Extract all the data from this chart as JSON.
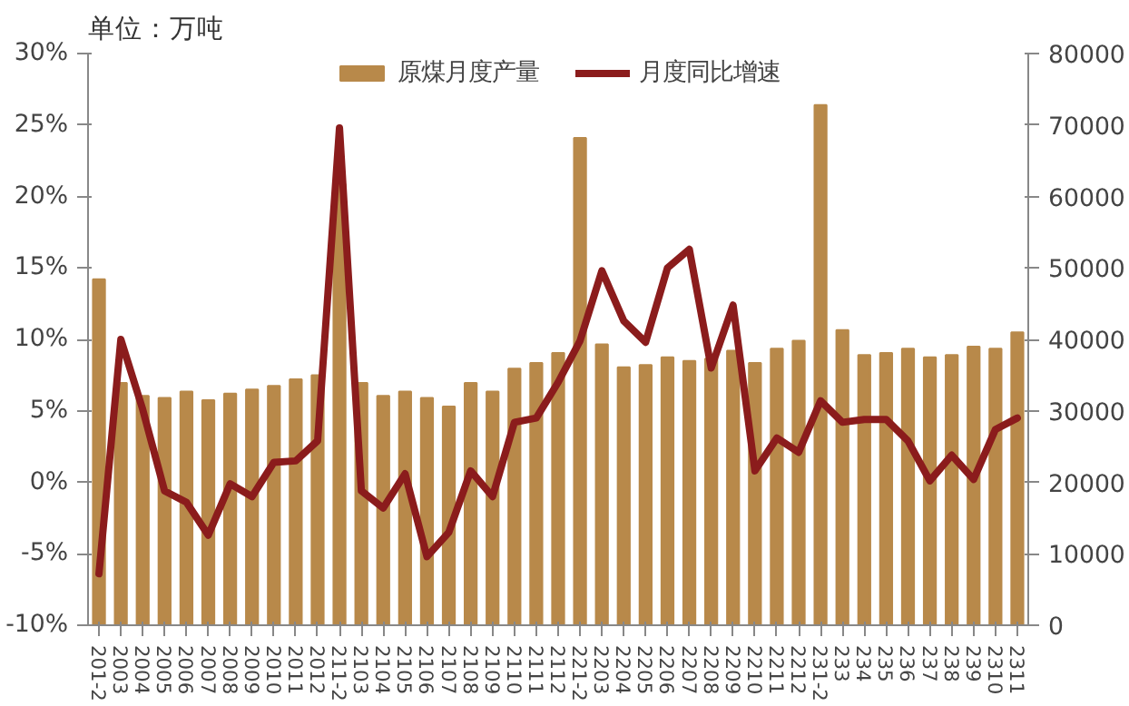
{
  "chart_data": {
    "type": "bar",
    "title": "单位：万吨",
    "categories": [
      "201-2",
      "2003",
      "2004",
      "2005",
      "2006",
      "2007",
      "2008",
      "2009",
      "2010",
      "2011",
      "2012",
      "211-2",
      "2103",
      "2104",
      "2105",
      "2106",
      "2107",
      "2108",
      "2109",
      "2110",
      "2111",
      "2112",
      "221-2",
      "2203",
      "2204",
      "2205",
      "2206",
      "2207",
      "2208",
      "2209",
      "2210",
      "2211",
      "2212",
      "231-2",
      "233",
      "234",
      "235",
      "236",
      "237",
      "238",
      "239",
      "2310",
      "2311"
    ],
    "series": [
      {
        "name": "原煤月度产量",
        "axis": "y2",
        "color": "#b8894a",
        "values": [
          48400,
          33900,
          32100,
          31800,
          32700,
          31500,
          32400,
          33000,
          33500,
          34400,
          35000,
          61700,
          33900,
          32100,
          32700,
          31800,
          30600,
          33900,
          32700,
          35900,
          36700,
          38100,
          68200,
          39300,
          36100,
          36400,
          37500,
          37000,
          37300,
          38400,
          36700,
          38700,
          39800,
          72800,
          41300,
          37800,
          38100,
          38700,
          37500,
          37800,
          39000,
          38700,
          41000
        ]
      },
      {
        "name": "月度同比增速",
        "type": "line",
        "axis": "y",
        "color": "#8b1c1c",
        "values": [
          -6.4,
          10.0,
          5.1,
          -0.6,
          -1.4,
          -3.7,
          -0.1,
          -1.0,
          1.4,
          1.5,
          2.9,
          24.8,
          -0.6,
          -1.8,
          0.6,
          -5.2,
          -3.5,
          0.8,
          -1.0,
          4.2,
          4.5,
          7.0,
          9.9,
          14.8,
          11.3,
          9.8,
          15.0,
          16.3,
          8.0,
          12.4,
          0.8,
          3.1,
          2.1,
          5.7,
          4.2,
          4.4,
          4.4,
          2.9,
          0.1,
          1.9,
          0.2,
          3.7,
          4.5
        ]
      }
    ],
    "ylim": [
      -10,
      30
    ],
    "yticks": [
      {
        "value": -10,
        "label": "-10%"
      },
      {
        "value": -5,
        "label": "-5%"
      },
      {
        "value": 0,
        "label": "0%"
      },
      {
        "value": 5,
        "label": "5%"
      },
      {
        "value": 10,
        "label": "10%"
      },
      {
        "value": 15,
        "label": "15%"
      },
      {
        "value": 20,
        "label": "20%"
      },
      {
        "value": 25,
        "label": "25%"
      },
      {
        "value": 30,
        "label": "30%"
      }
    ],
    "y2lim": [
      0,
      80000
    ],
    "y2ticks": [
      0,
      10000,
      20000,
      30000,
      40000,
      50000,
      60000,
      70000,
      80000
    ],
    "grid": false,
    "legend": "top",
    "line_style": "solid",
    "marker": "none"
  }
}
